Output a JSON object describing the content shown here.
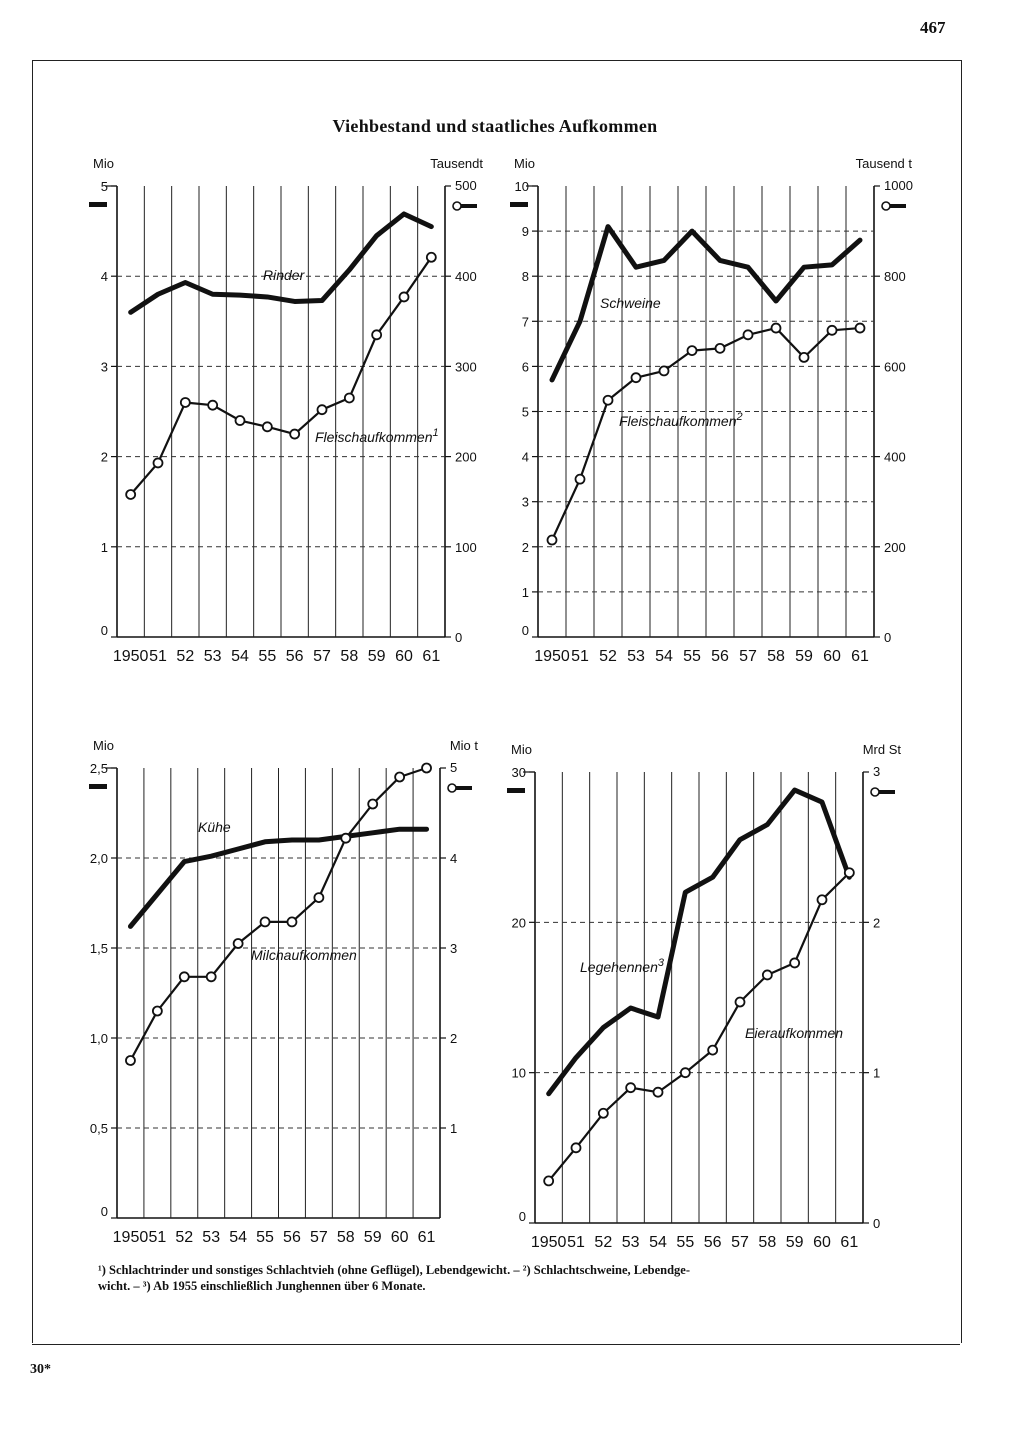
{
  "page": {
    "number": "467",
    "signature": "30*"
  },
  "title": "Viehbestand und staatliches Aufkommen",
  "footnotes": [
    "¹) Schlachtrinder und sonstiges Schlachtvieh (ohne Geflügel), Lebendgewicht. – ²) Schlachtschweine, Lebendge-",
    "wicht. – ³) Ab 1955 einschließlich Junghennen über 6 Monate."
  ],
  "chart_data": [
    {
      "type": "line",
      "categories": [
        "1950",
        "51",
        "52",
        "53",
        "54",
        "55",
        "56",
        "57",
        "58",
        "59",
        "60",
        "61"
      ],
      "y_left": {
        "unit": "Mio",
        "ticks": [
          "0",
          "1",
          "2",
          "3",
          "4",
          "5"
        ],
        "max": 5
      },
      "y_right": {
        "unit": "Tausendt",
        "ticks": [
          "0",
          "100",
          "200",
          "300",
          "400",
          "500"
        ],
        "max": 500
      },
      "series": [
        {
          "name": "Rinder",
          "axis": "left",
          "marker": "none",
          "values": [
            3.6,
            3.8,
            3.93,
            3.8,
            3.79,
            3.77,
            3.72,
            3.73,
            4.07,
            4.45,
            4.69,
            4.55
          ]
        },
        {
          "name": "Fleischaufkommen",
          "note": "1",
          "axis": "right",
          "marker": "circle",
          "values": [
            158,
            193,
            260,
            257,
            240,
            233,
            225,
            252,
            265,
            335,
            377,
            421
          ]
        }
      ]
    },
    {
      "type": "line",
      "categories": [
        "1950",
        "51",
        "52",
        "53",
        "54",
        "55",
        "56",
        "57",
        "58",
        "59",
        "60",
        "61"
      ],
      "y_left": {
        "unit": "Mio",
        "ticks": [
          "0",
          "1",
          "2",
          "3",
          "4",
          "5",
          "6",
          "7",
          "8",
          "9",
          "10"
        ],
        "max": 10
      },
      "y_right": {
        "unit": "Tausend t",
        "ticks": [
          "0",
          "200",
          "400",
          "600",
          "800",
          "1000"
        ],
        "max": 1000
      },
      "series": [
        {
          "name": "Schweine",
          "axis": "left",
          "marker": "none",
          "values": [
            5.7,
            7.0,
            9.1,
            8.2,
            8.35,
            9.0,
            8.35,
            8.2,
            7.45,
            8.2,
            8.25,
            8.8
          ]
        },
        {
          "name": "Fleischaufkommen",
          "note": "2",
          "axis": "right",
          "marker": "circle",
          "values": [
            215,
            350,
            525,
            575,
            590,
            635,
            640,
            670,
            685,
            620,
            680,
            685
          ]
        }
      ]
    },
    {
      "type": "line",
      "categories": [
        "1950",
        "51",
        "52",
        "53",
        "54",
        "55",
        "56",
        "57",
        "58",
        "59",
        "60",
        "61"
      ],
      "y_left": {
        "unit": "Mio",
        "ticks": [
          "0",
          "0,5",
          "1,0",
          "1,5",
          "2,0",
          "2,5"
        ],
        "max": 2.5
      },
      "y_right": {
        "unit": "Mio t",
        "ticks": [
          "1",
          "2",
          "3",
          "4",
          "5"
        ],
        "max": 5
      },
      "series": [
        {
          "name": "Kühe",
          "axis": "left",
          "marker": "none",
          "values": [
            1.62,
            1.8,
            1.98,
            2.01,
            2.05,
            2.09,
            2.1,
            2.1,
            2.12,
            2.14,
            2.16,
            2.16
          ]
        },
        {
          "name": "Milchaufkommen",
          "axis": "right",
          "marker": "circle",
          "values": [
            1.75,
            2.3,
            2.68,
            2.68,
            3.05,
            3.29,
            3.29,
            3.56,
            4.22,
            4.6,
            4.9,
            5.0
          ]
        }
      ]
    },
    {
      "type": "line",
      "categories": [
        "1950",
        "51",
        "52",
        "53",
        "54",
        "55",
        "56",
        "57",
        "58",
        "59",
        "60",
        "61"
      ],
      "y_left": {
        "unit": "Mio",
        "ticks": [
          "0",
          "10",
          "20",
          "30"
        ],
        "max": 30
      },
      "y_right": {
        "unit": "Mrd St",
        "ticks": [
          "0",
          "1",
          "2",
          "3"
        ],
        "max": 3
      },
      "series": [
        {
          "name": "Legehennen",
          "note": "3",
          "axis": "left",
          "marker": "none",
          "values": [
            8.6,
            11.0,
            13.0,
            14.3,
            13.7,
            22.0,
            23.0,
            25.5,
            26.5,
            28.8,
            28.0,
            23.0
          ]
        },
        {
          "name": "Eieraufkommen",
          "axis": "right",
          "marker": "circle",
          "values": [
            0.28,
            0.5,
            0.73,
            0.9,
            0.87,
            1.0,
            1.15,
            1.47,
            1.65,
            1.73,
            2.15,
            2.33
          ]
        }
      ]
    }
  ]
}
